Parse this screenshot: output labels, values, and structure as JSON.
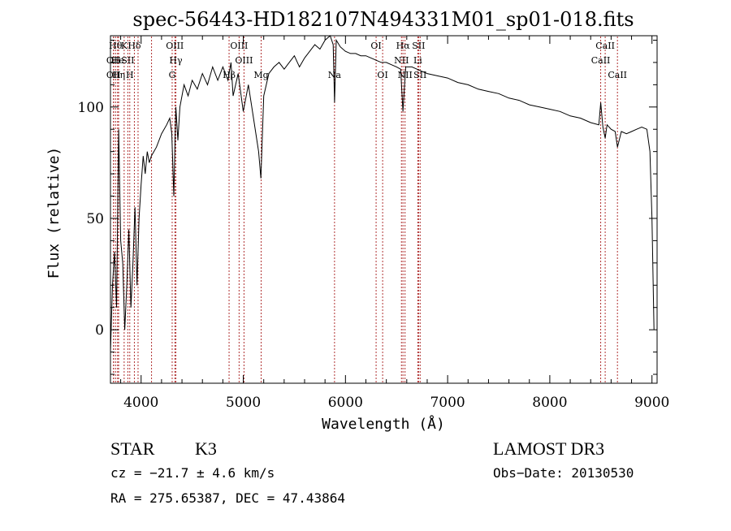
{
  "chart_data": {
    "type": "line",
    "title": "spec-56443-HD182107N494331M01_sp01-018.fits",
    "xlabel": "Wavelength (Å)",
    "ylabel": "Flux (relative)",
    "xlim": [
      3700,
      9050
    ],
    "ylim": [
      -24,
      132
    ],
    "x_ticks": [
      4000,
      5000,
      6000,
      7000,
      8000,
      9000
    ],
    "y_ticks": [
      0,
      50,
      100
    ],
    "grid": false,
    "series": [
      {
        "name": "spectrum",
        "points": [
          [
            3700,
            -10
          ],
          [
            3720,
            20
          ],
          [
            3740,
            35
          ],
          [
            3760,
            10
          ],
          [
            3780,
            90
          ],
          [
            3800,
            40
          ],
          [
            3820,
            30
          ],
          [
            3840,
            0
          ],
          [
            3860,
            20
          ],
          [
            3880,
            45
          ],
          [
            3900,
            10
          ],
          [
            3920,
            30
          ],
          [
            3940,
            55
          ],
          [
            3960,
            20
          ],
          [
            3980,
            50
          ],
          [
            4000,
            65
          ],
          [
            4020,
            78
          ],
          [
            4040,
            70
          ],
          [
            4060,
            80
          ],
          [
            4080,
            75
          ],
          [
            4100,
            78
          ],
          [
            4150,
            82
          ],
          [
            4200,
            88
          ],
          [
            4250,
            92
          ],
          [
            4280,
            95
          ],
          [
            4300,
            88
          ],
          [
            4320,
            60
          ],
          [
            4340,
            100
          ],
          [
            4360,
            85
          ],
          [
            4380,
            100
          ],
          [
            4420,
            110
          ],
          [
            4460,
            105
          ],
          [
            4500,
            112
          ],
          [
            4550,
            108
          ],
          [
            4600,
            115
          ],
          [
            4650,
            110
          ],
          [
            4700,
            118
          ],
          [
            4750,
            112
          ],
          [
            4800,
            118
          ],
          [
            4850,
            112
          ],
          [
            4880,
            120
          ],
          [
            4900,
            105
          ],
          [
            4950,
            115
          ],
          [
            5000,
            98
          ],
          [
            5050,
            110
          ],
          [
            5100,
            95
          ],
          [
            5150,
            80
          ],
          [
            5172,
            68
          ],
          [
            5200,
            105
          ],
          [
            5250,
            115
          ],
          [
            5300,
            118
          ],
          [
            5350,
            120
          ],
          [
            5400,
            117
          ],
          [
            5450,
            120
          ],
          [
            5500,
            123
          ],
          [
            5550,
            118
          ],
          [
            5600,
            122
          ],
          [
            5650,
            125
          ],
          [
            5700,
            128
          ],
          [
            5750,
            126
          ],
          [
            5800,
            130
          ],
          [
            5850,
            132
          ],
          [
            5880,
            128
          ],
          [
            5893,
            102
          ],
          [
            5910,
            130
          ],
          [
            5950,
            127
          ],
          [
            6000,
            125
          ],
          [
            6050,
            124
          ],
          [
            6100,
            124
          ],
          [
            6150,
            123
          ],
          [
            6200,
            123
          ],
          [
            6250,
            122
          ],
          [
            6300,
            121
          ],
          [
            6350,
            120
          ],
          [
            6400,
            120
          ],
          [
            6450,
            119
          ],
          [
            6500,
            118
          ],
          [
            6540,
            117
          ],
          [
            6563,
            98
          ],
          [
            6590,
            118
          ],
          [
            6650,
            118
          ],
          [
            6700,
            117
          ],
          [
            6750,
            116
          ],
          [
            6800,
            115
          ],
          [
            6900,
            114
          ],
          [
            7000,
            113
          ],
          [
            7100,
            111
          ],
          [
            7200,
            110
          ],
          [
            7300,
            108
          ],
          [
            7400,
            107
          ],
          [
            7500,
            106
          ],
          [
            7600,
            104
          ],
          [
            7700,
            103
          ],
          [
            7800,
            101
          ],
          [
            7900,
            100
          ],
          [
            8000,
            99
          ],
          [
            8100,
            98
          ],
          [
            8200,
            96
          ],
          [
            8300,
            95
          ],
          [
            8400,
            93
          ],
          [
            8480,
            92
          ],
          [
            8498,
            102
          ],
          [
            8520,
            91
          ],
          [
            8542,
            86
          ],
          [
            8560,
            92
          ],
          [
            8600,
            90
          ],
          [
            8640,
            89
          ],
          [
            8662,
            82
          ],
          [
            8700,
            89
          ],
          [
            8750,
            88
          ],
          [
            8800,
            89
          ],
          [
            8850,
            90
          ],
          [
            8900,
            91
          ],
          [
            8950,
            90
          ],
          [
            8980,
            80
          ],
          [
            9000,
            50
          ],
          [
            9020,
            0
          ]
        ]
      }
    ],
    "lines": [
      {
        "x": 3750,
        "label": "Hθ",
        "row": 1
      },
      {
        "x": 3730,
        "label": "OII",
        "row": 2
      },
      {
        "x": 3770,
        "label": "He",
        "row": 2
      },
      {
        "x": 3730,
        "label": "OII",
        "row": 3
      },
      {
        "x": 3780,
        "label": "Hη",
        "row": 3
      },
      {
        "x": 3834,
        "label": "K",
        "row": 1
      },
      {
        "x": 3870,
        "label": "SII",
        "row": 2
      },
      {
        "x": 3889,
        "label": "H",
        "row": 3
      },
      {
        "x": 3934,
        "label": "Hδ",
        "row": 1
      },
      {
        "x": 3970,
        "label": "",
        "row": 0
      },
      {
        "x": 4102,
        "label": "",
        "row": 0
      },
      {
        "x": 4330,
        "label": "OIII",
        "row": 1
      },
      {
        "x": 4340,
        "label": "Hγ",
        "row": 2
      },
      {
        "x": 4304,
        "label": "G",
        "row": 3
      },
      {
        "x": 4861,
        "label": "Hβ",
        "row": 3
      },
      {
        "x": 4959,
        "label": "OIII",
        "row": 1
      },
      {
        "x": 5007,
        "label": "OIII",
        "row": 2
      },
      {
        "x": 5175,
        "label": "Mg",
        "row": 3
      },
      {
        "x": 5893,
        "label": "Na",
        "row": 3
      },
      {
        "x": 6300,
        "label": "OI",
        "row": 1
      },
      {
        "x": 6364,
        "label": "OI",
        "row": 3
      },
      {
        "x": 6548,
        "label": "NII",
        "row": 2
      },
      {
        "x": 6563,
        "label": "Hα",
        "row": 1
      },
      {
        "x": 6583,
        "label": "NII",
        "row": 3
      },
      {
        "x": 6708,
        "label": "Li",
        "row": 2
      },
      {
        "x": 6716,
        "label": "SII",
        "row": 1
      },
      {
        "x": 6731,
        "label": "SII",
        "row": 3
      },
      {
        "x": 8498,
        "label": "CaII",
        "row": 2
      },
      {
        "x": 8542,
        "label": "CaII",
        "row": 1
      },
      {
        "x": 8662,
        "label": "CaII",
        "row": 3
      }
    ]
  },
  "info": {
    "object_type": "STAR",
    "subclass": "K3",
    "survey": "LAMOST DR3",
    "cz": "cz = −21.7 ± 4.6 km/s",
    "obs_date": "Obs−Date: 20130530",
    "coords": "RA = 275.65387, DEC =  47.43864"
  }
}
